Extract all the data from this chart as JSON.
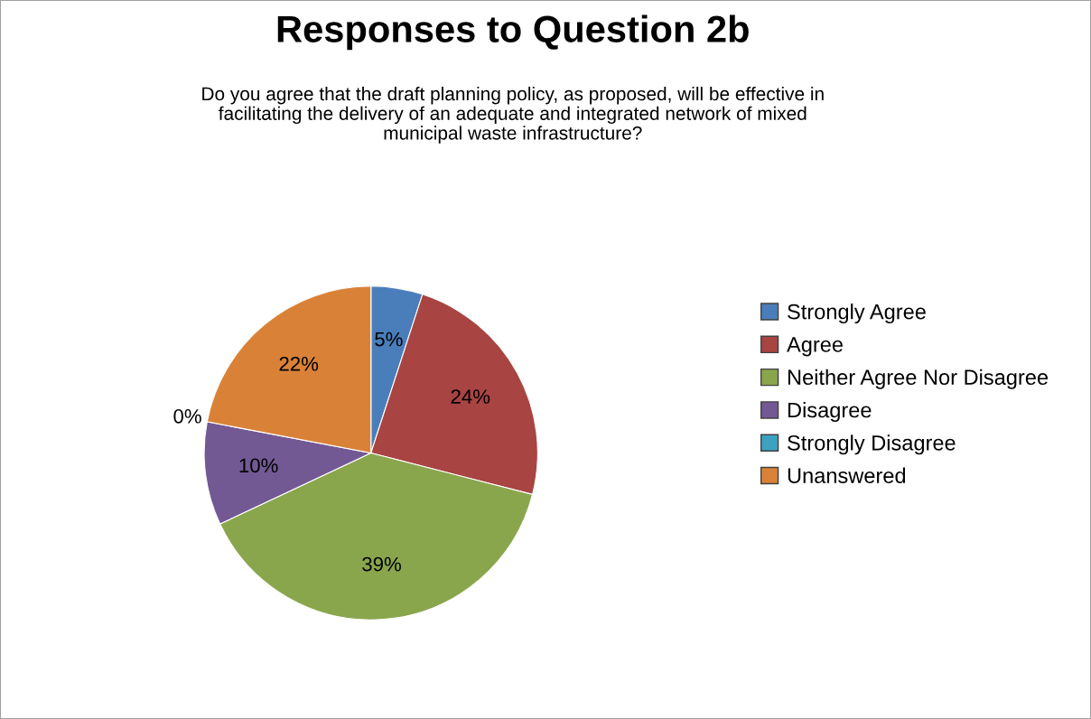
{
  "chart_data": {
    "type": "pie",
    "title": "Responses to Question 2b",
    "subtitle": "Do you agree that the draft planning policy, as proposed, will be effective in\nfacilitating the delivery of an adequate and integrated network of mixed\nmunicipal waste infrastructure?",
    "categories": [
      "Strongly Agree",
      "Agree",
      "Neither Agree Nor Disagree",
      "Disagree",
      "Strongly Disagree",
      "Unanswered"
    ],
    "values": [
      5,
      24,
      39,
      10,
      0,
      22
    ],
    "value_labels": [
      "5%",
      "24%",
      "39%",
      "10%",
      "0%",
      "22%"
    ],
    "colors": [
      "#4a7ebb",
      "#a84442",
      "#8aa64d",
      "#725994",
      "#3ba3c0",
      "#d98237"
    ],
    "legend": "right"
  }
}
